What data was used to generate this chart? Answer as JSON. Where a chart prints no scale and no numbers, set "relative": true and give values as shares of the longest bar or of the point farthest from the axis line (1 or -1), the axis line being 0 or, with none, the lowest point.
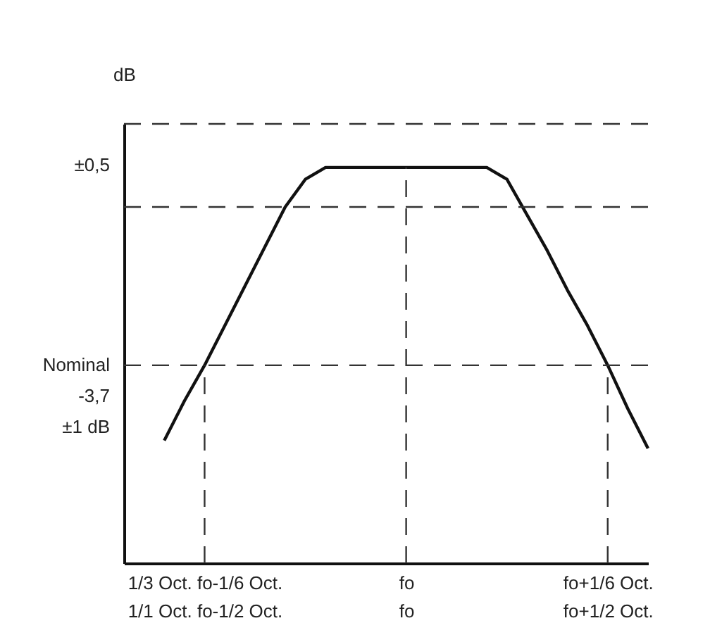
{
  "chart_data": {
    "type": "line",
    "ylabel": "dB",
    "relative": true,
    "color": "#111111",
    "line_style": "solid",
    "categories": [
      null,
      null,
      null,
      null,
      "1/3 Oct. fo-1/6 Oct.\n1/1 Oct. fo-1/2 Oct.",
      null,
      null,
      null,
      null,
      null,
      null,
      null,
      null,
      null,
      "fo\nfo",
      null,
      null,
      null,
      null,
      null,
      null,
      null,
      null,
      null,
      "fo+1/6 Oct.\nfo+1/2 Oct.",
      null,
      null
    ],
    "values": [
      null,
      null,
      0.31,
      0.41,
      0.5,
      0.6,
      0.7,
      0.8,
      0.9,
      0.97,
      1,
      1,
      1,
      1,
      1,
      1,
      1,
      1,
      1,
      0.97,
      0.88,
      0.79,
      0.69,
      0.6,
      0.5,
      0.39,
      0.29
    ],
    "ref_lines": [
      {
        "axis": "y",
        "value": 1.11,
        "label": null,
        "line_style": "dashed",
        "color": "#333333"
      },
      {
        "axis": "y",
        "value": 0.9,
        "label": null,
        "line_style": "dashed",
        "color": "#333333"
      },
      {
        "axis": "y",
        "value": 0.5,
        "label": "Nominal\n-3,7\n±1 dB",
        "line_style": "dashed",
        "color": "#333333"
      },
      {
        "axis": "x",
        "value": "1/3 Oct. fo-1/6 Oct.\n1/1 Oct. fo-1/2 Oct.",
        "label": null,
        "line_style": "dashed",
        "color": "#333333"
      },
      {
        "axis": "x",
        "value": "fo\nfo",
        "label": null,
        "line_style": "dashed",
        "color": "#333333"
      },
      {
        "axis": "x",
        "value": "fo+1/6 Oct.\nfo+1/2 Oct.",
        "label": null,
        "line_style": "dashed",
        "color": "#333333"
      }
    ],
    "annotations": [
      "±0,5"
    ]
  }
}
